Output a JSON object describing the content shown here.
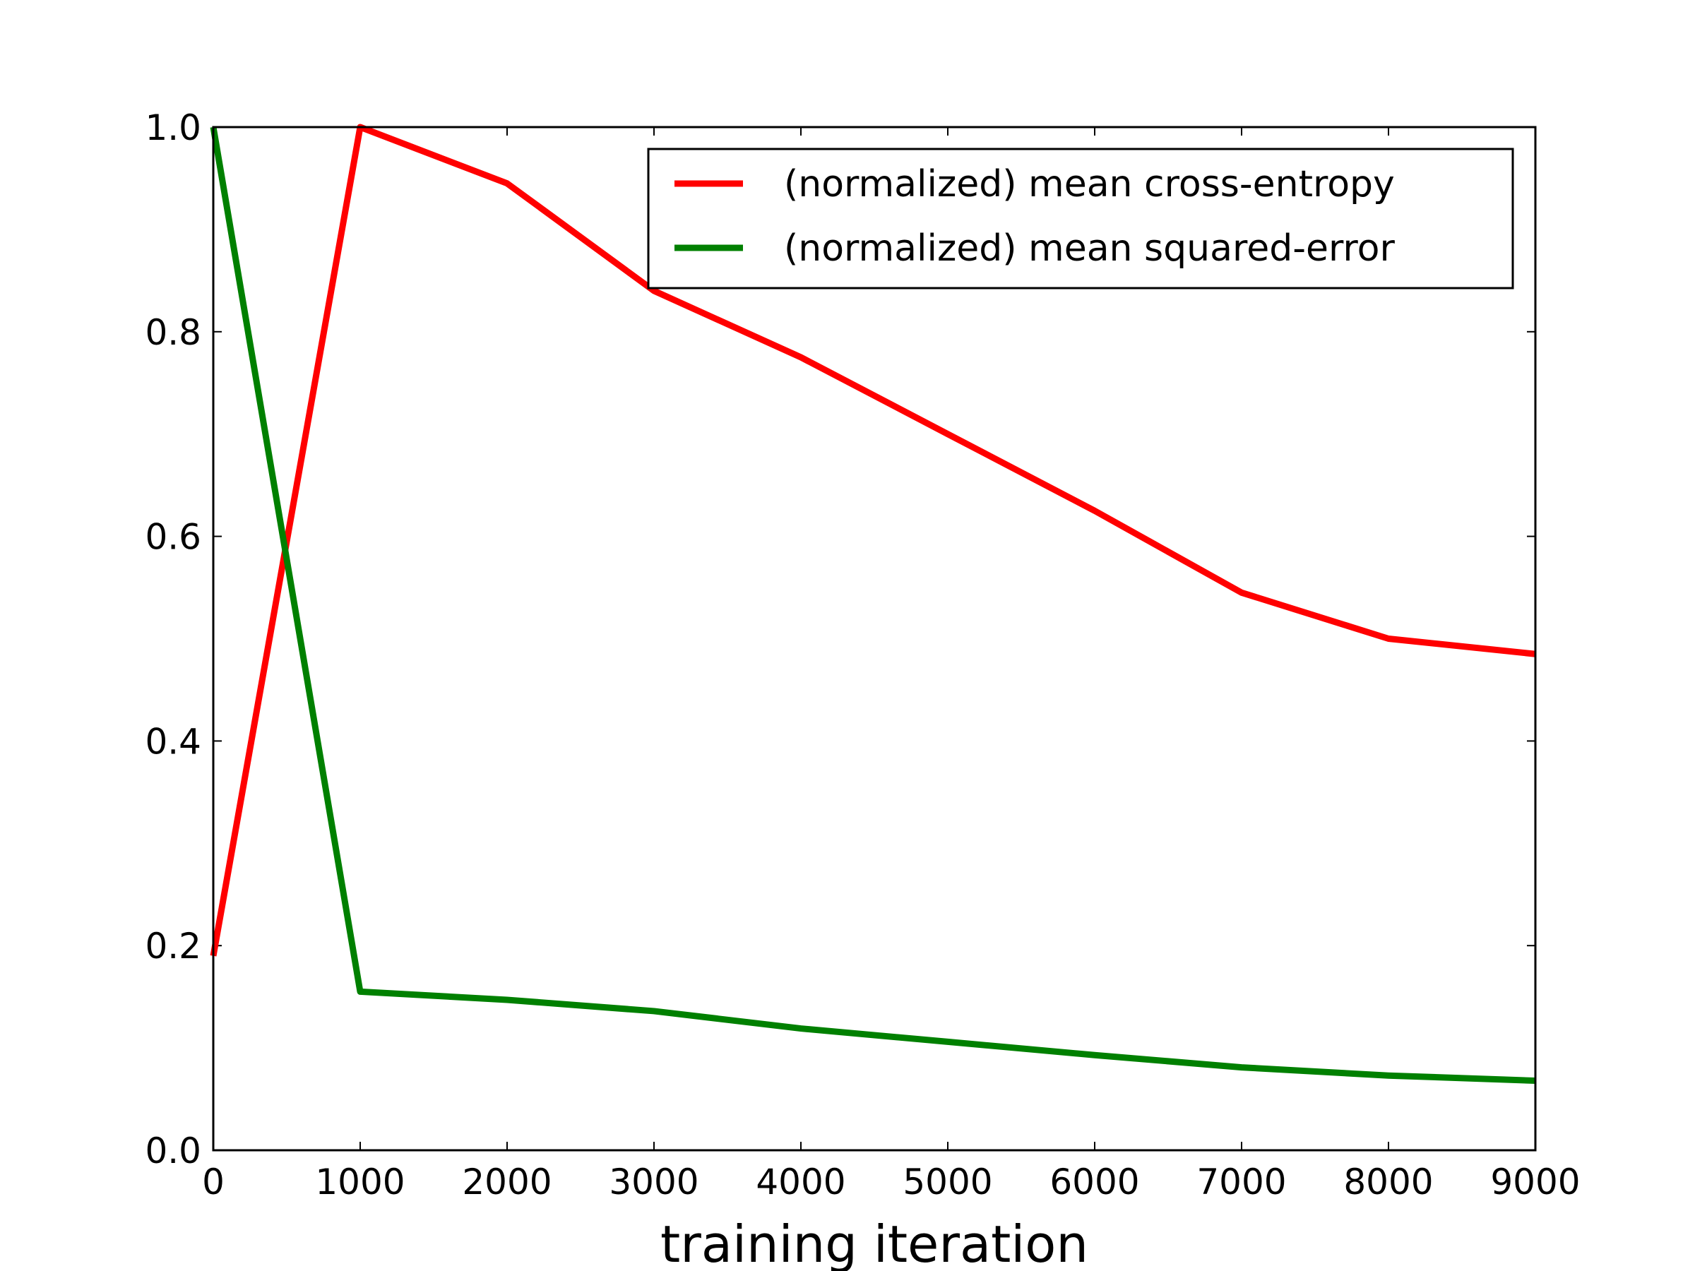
{
  "chart_data": {
    "type": "line",
    "xlabel": "training iteration",
    "ylabel": "",
    "xlim": [
      0,
      9000
    ],
    "ylim": [
      0.0,
      1.0
    ],
    "xticks": [
      "0",
      "1000",
      "2000",
      "3000",
      "4000",
      "5000",
      "6000",
      "7000",
      "8000",
      "9000"
    ],
    "yticks": [
      "0.0",
      "0.2",
      "0.4",
      "0.6",
      "0.8",
      "1.0"
    ],
    "grid": false,
    "legend_position": "top-right",
    "x": [
      0,
      1000,
      2000,
      3000,
      4000,
      5000,
      6000,
      7000,
      8000,
      9000
    ],
    "series": [
      {
        "name": "(normalized) mean cross-entropy",
        "color": "#ff0000",
        "values": [
          0.19,
          1.0,
          0.945,
          0.84,
          0.775,
          0.7,
          0.625,
          0.545,
          0.5,
          0.485
        ]
      },
      {
        "name": "(normalized) mean squared-error",
        "color": "#008000",
        "values": [
          1.0,
          0.155,
          0.147,
          0.136,
          0.119,
          0.106,
          0.093,
          0.081,
          0.073,
          0.068
        ]
      }
    ]
  }
}
